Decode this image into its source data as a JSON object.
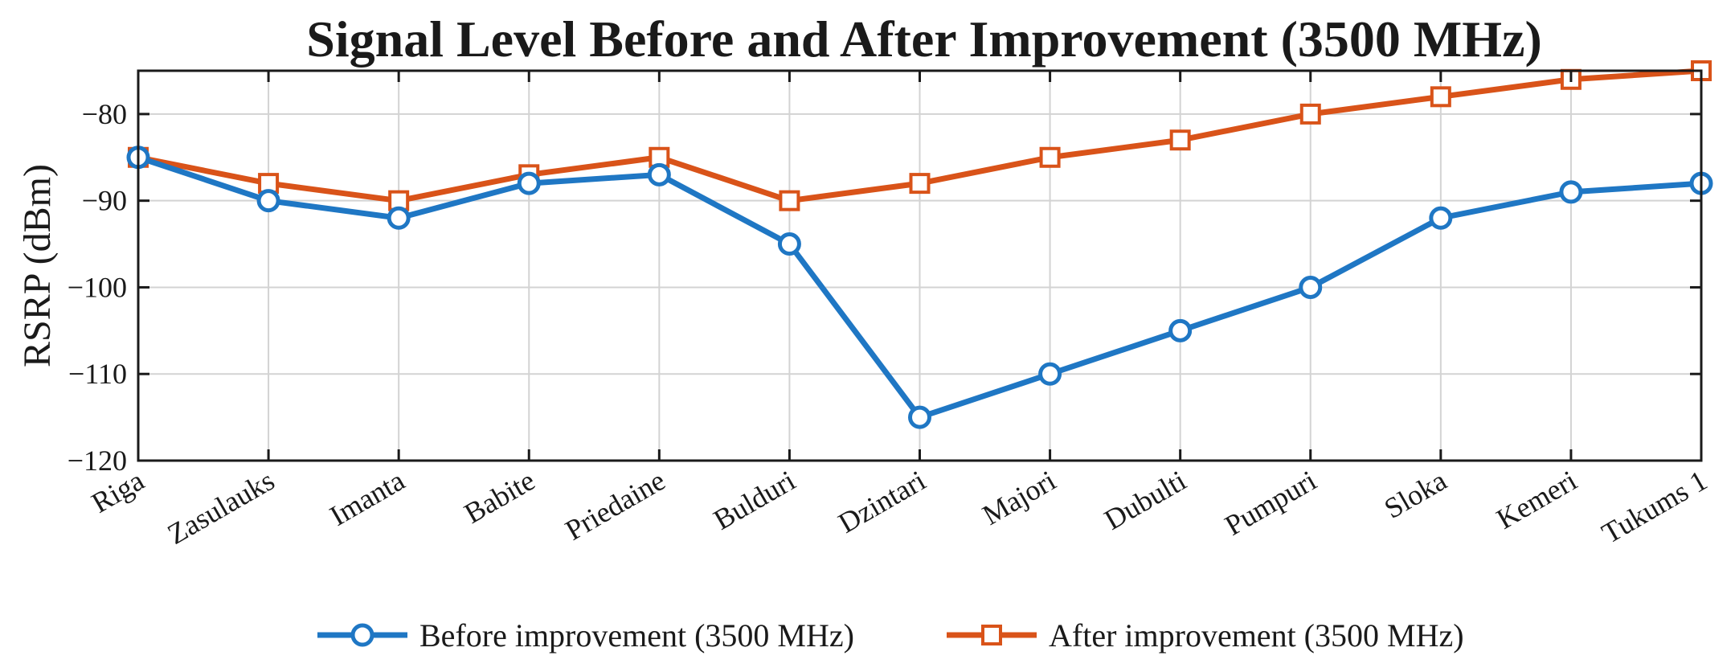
{
  "chart_data": {
    "type": "line",
    "title": "Signal Level Before and After Improvement (3500 MHz)",
    "xlabel": "",
    "ylabel": "RSRP (dBm)",
    "ylim": [
      -120,
      -75
    ],
    "yticks": [
      -80,
      -90,
      -100,
      -110,
      -120
    ],
    "ytick_labels": [
      "-80",
      "-90",
      "-100",
      "-110",
      "-120"
    ],
    "grid": true,
    "legend_position": "bottom-center",
    "categories": [
      "Riga",
      "Zasulauks",
      "Imanta",
      "Babite",
      "Priedaine",
      "Bulduri",
      "Dzintari",
      "Majori",
      "Dubulti",
      "Pumpuri",
      "Sloka",
      "Kemeri",
      "Tukums 1"
    ],
    "series": [
      {
        "name": "Before improvement (3500 MHz)",
        "color": "#1f77c4",
        "marker": "circle",
        "values": [
          -85,
          -90,
          -92,
          -88,
          -87,
          -95,
          -115,
          -110,
          -105,
          -100,
          -92,
          -89,
          -88
        ]
      },
      {
        "name": "After improvement (3500 MHz)",
        "color": "#d95319",
        "marker": "square",
        "values": [
          -85,
          -88,
          -90,
          -87,
          -85,
          -90,
          -88,
          -85,
          -83,
          -80,
          -78,
          -76,
          -75
        ]
      }
    ]
  }
}
